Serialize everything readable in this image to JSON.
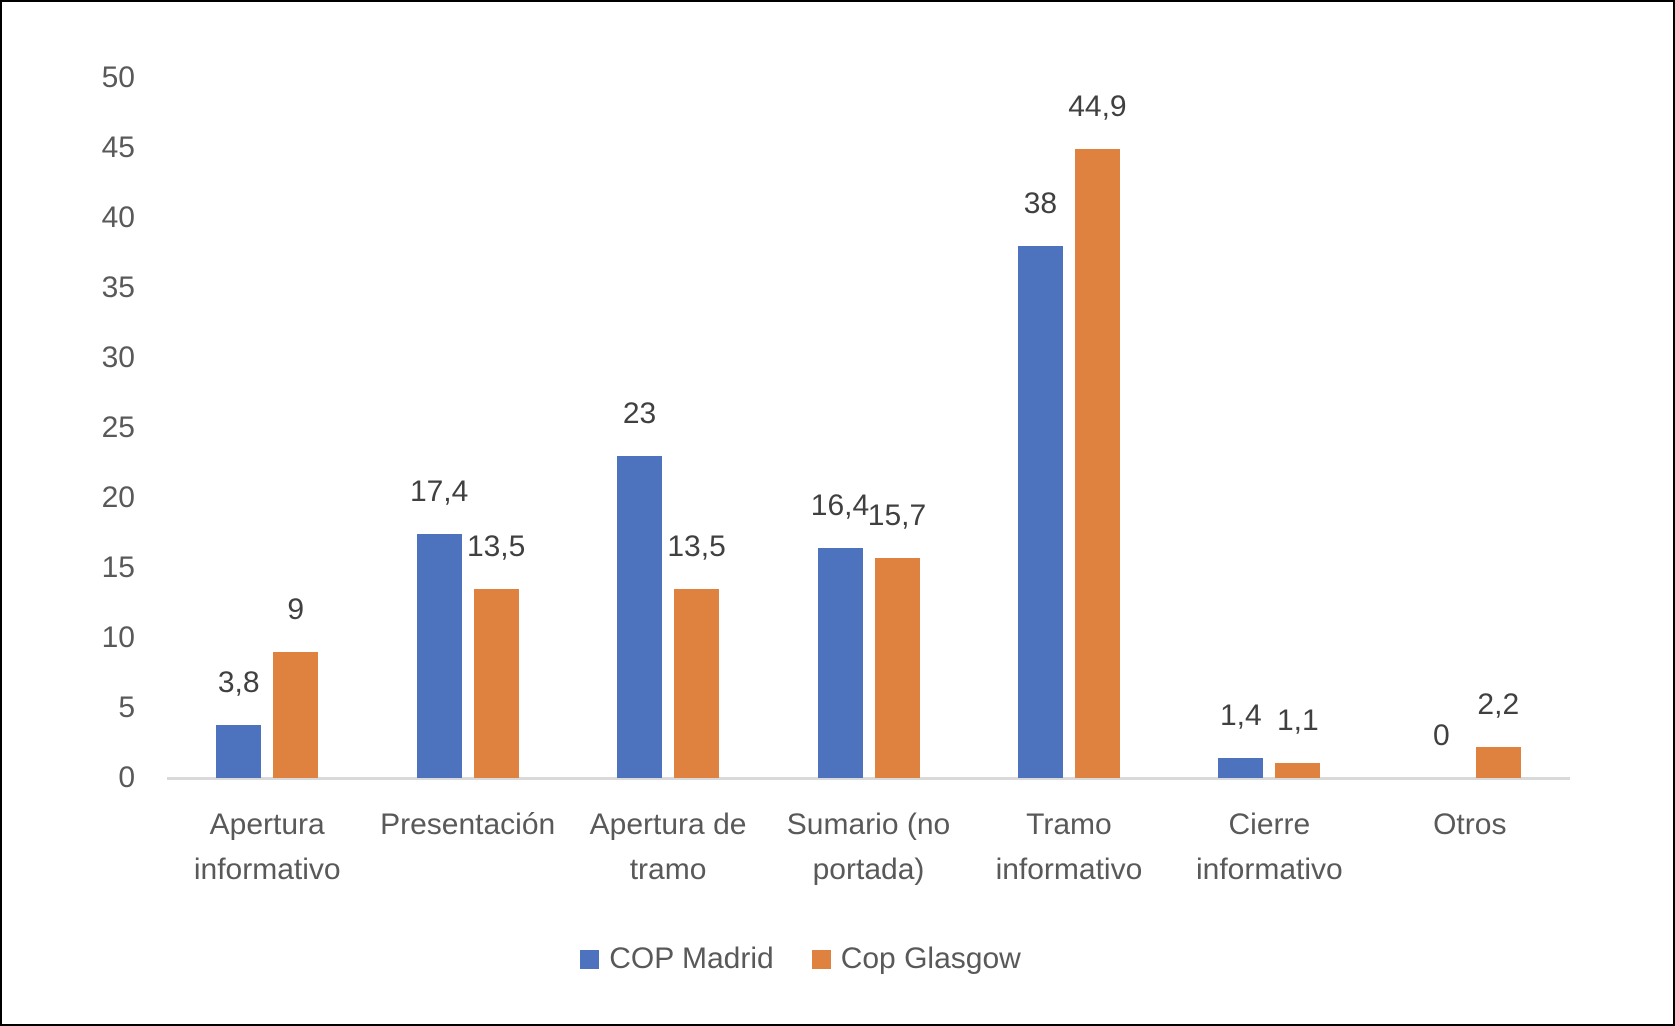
{
  "chart_data": {
    "type": "bar",
    "title": "",
    "xlabel": "",
    "ylabel": "",
    "categories": [
      "Apertura informativo",
      "Presentación",
      "Apertura de tramo",
      "Sumario (no portada)",
      "Tramo informativo",
      "Cierre informativo",
      "Otros"
    ],
    "series": [
      {
        "name": "COP Madrid",
        "color": "#4E73BE",
        "values": [
          3.8,
          17.4,
          23,
          16.4,
          38,
          1.4,
          0
        ],
        "value_labels": [
          "3,8",
          "17,4",
          "23",
          "16,4",
          "38",
          "1,4",
          "0"
        ]
      },
      {
        "name": "Cop Glasgow",
        "color": "#E0823F",
        "values": [
          9,
          13.5,
          13.5,
          15.7,
          44.9,
          1.1,
          2.2
        ],
        "value_labels": [
          "9",
          "13,5",
          "13,5",
          "15,7",
          "44,9",
          "1,1",
          "2,2"
        ]
      }
    ],
    "ylim": [
      0,
      50
    ],
    "ytick_step": 5,
    "ytick_labels": [
      "0",
      "5",
      "10",
      "15",
      "20",
      "25",
      "30",
      "35",
      "40",
      "45",
      "50"
    ],
    "grid": false,
    "data_labels_shown": true,
    "legend_position": "bottom"
  },
  "colors": {
    "background": "#FFFFFF",
    "frame_border": "#000000",
    "axis_line": "#D9D9D9",
    "tick_text": "#595959",
    "category_text": "#595959",
    "data_label_text": "#404040",
    "legend_text": "#595959"
  }
}
